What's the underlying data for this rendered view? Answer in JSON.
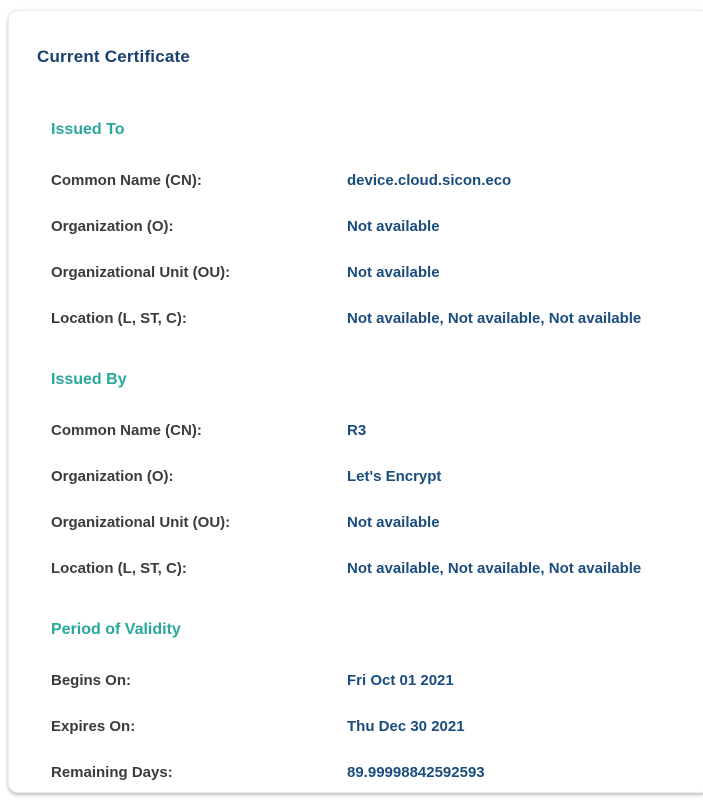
{
  "card": {
    "title": "Current Certificate",
    "sections": [
      {
        "heading": "Issued To",
        "rows": [
          {
            "label": "Common Name (CN):",
            "value": "device.cloud.sicon.eco"
          },
          {
            "label": "Organization (O):",
            "value": "Not available"
          },
          {
            "label": "Organizational Unit (OU):",
            "value": "Not available"
          },
          {
            "label": "Location (L, ST, C):",
            "value": "Not available, Not available, Not available"
          }
        ]
      },
      {
        "heading": "Issued By",
        "rows": [
          {
            "label": "Common Name (CN):",
            "value": "R3"
          },
          {
            "label": "Organization (O):",
            "value": "Let's Encrypt"
          },
          {
            "label": "Organizational Unit (OU):",
            "value": "Not available"
          },
          {
            "label": "Location (L, ST, C):",
            "value": "Not available, Not available, Not available"
          }
        ]
      },
      {
        "heading": "Period of Validity",
        "rows": [
          {
            "label": "Begins On:",
            "value": "Fri Oct 01 2021"
          },
          {
            "label": "Expires On:",
            "value": "Thu Dec 30 2021"
          },
          {
            "label": "Remaining Days:",
            "value": "89.99998842592593"
          }
        ]
      }
    ]
  },
  "colors": {
    "title_navy": "#17416f",
    "heading_teal": "#2aa79b",
    "label_gray": "#3b3b3b",
    "value_navy": "#1a4c7d",
    "card_background": "#ffffff"
  }
}
